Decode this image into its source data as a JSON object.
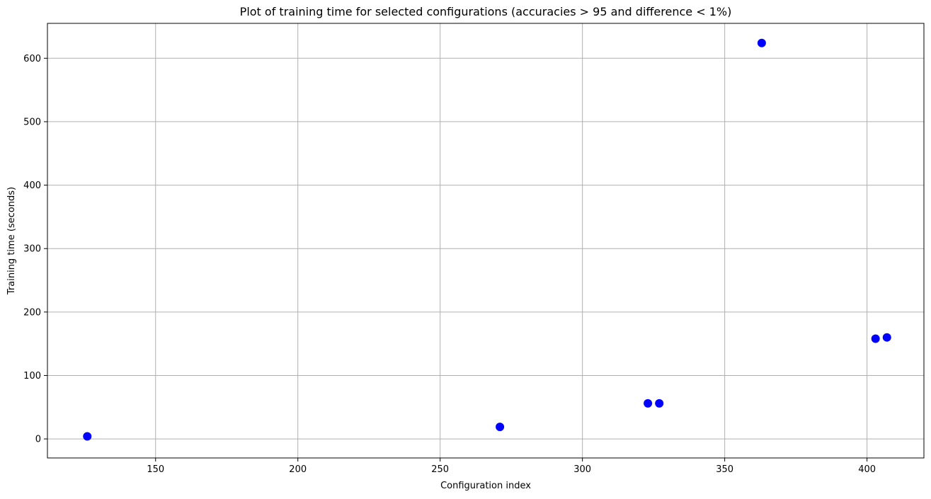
{
  "chart_data": {
    "type": "scatter",
    "title": "Plot of training time for selected configurations (accuracies > 95 and difference < 1%)",
    "xlabel": "Configuration index",
    "ylabel": "Training time (seconds)",
    "xlim": [
      112,
      420
    ],
    "ylim": [
      -30,
      655
    ],
    "xticks": [
      150,
      200,
      250,
      300,
      350,
      400
    ],
    "yticks": [
      0,
      100,
      200,
      300,
      400,
      500,
      600
    ],
    "grid": true,
    "marker_color": "#0000ff",
    "points": [
      {
        "x": 126,
        "y": 4
      },
      {
        "x": 271,
        "y": 19
      },
      {
        "x": 323,
        "y": 56
      },
      {
        "x": 327,
        "y": 56
      },
      {
        "x": 363,
        "y": 624
      },
      {
        "x": 403,
        "y": 158
      },
      {
        "x": 407,
        "y": 160
      }
    ]
  }
}
